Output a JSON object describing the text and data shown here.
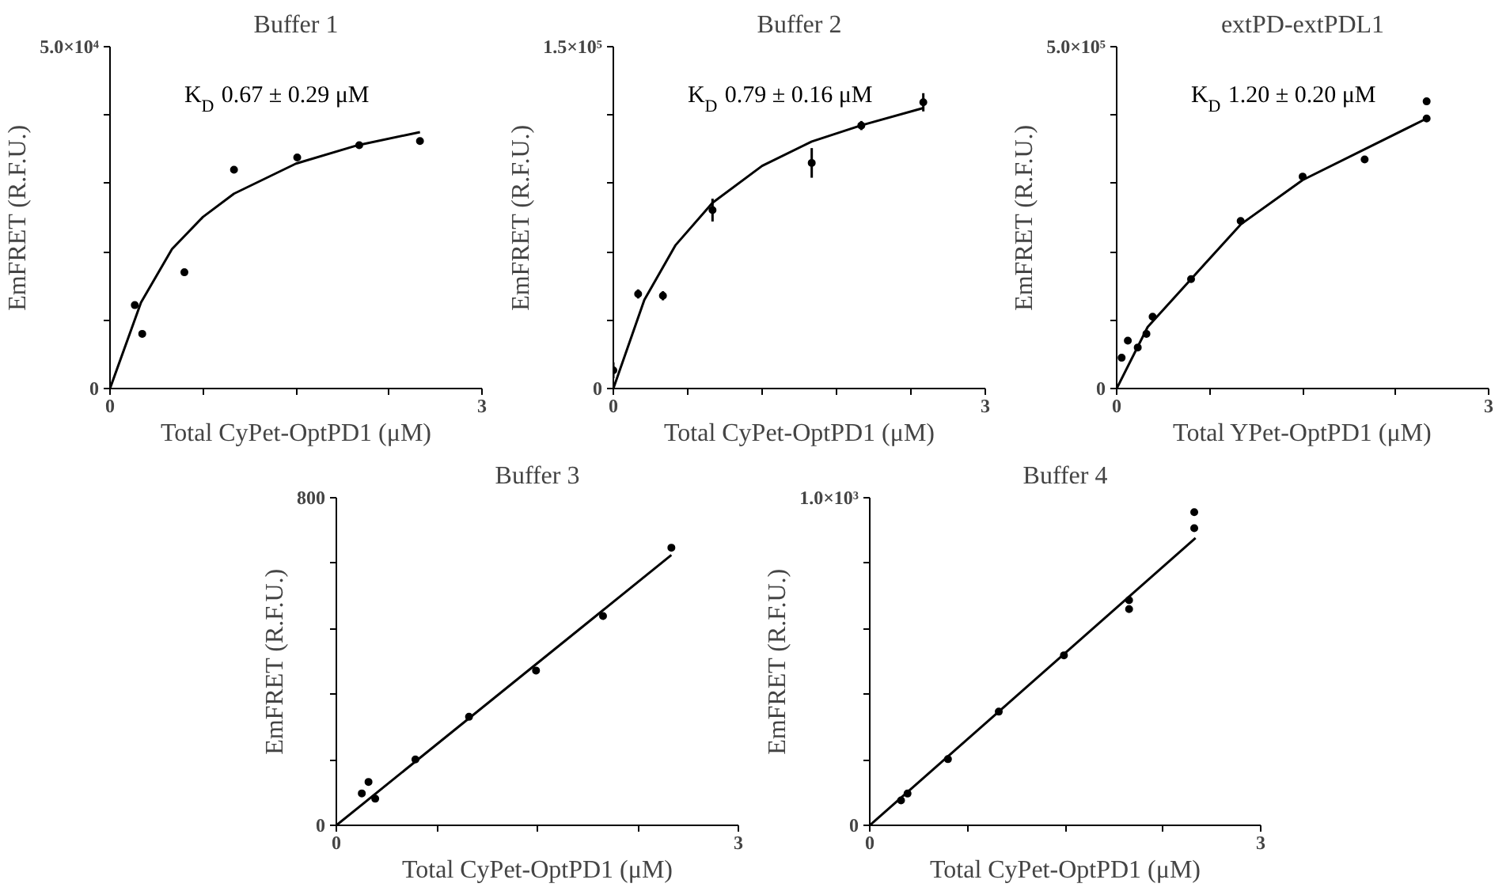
{
  "chart_data": [
    {
      "type": "scatter",
      "title": "Buffer 1",
      "xlabel": "Total CyPet-OptPD1 (μM)",
      "ylabel": "EmFRET (R.F.U.)",
      "annotations": [
        "K$_{D}$ 0.67 ± 0.29 μM"
      ],
      "xlim": [
        0,
        3
      ],
      "ylim": [
        0,
        50000
      ],
      "xticks": [
        0,
        {
          "value": 0.75,
          "label": null
        },
        {
          "value": 1.5,
          "label": null
        },
        {
          "value": 2.25,
          "label": null
        },
        3
      ],
      "yticks": [
        0,
        {
          "value": 10000,
          "label": null
        },
        {
          "value": 20000,
          "label": null
        },
        {
          "value": 30000,
          "label": null
        },
        {
          "value": 40000,
          "label": null
        },
        {
          "value": 50000,
          "label": "5.0×10⁴"
        }
      ],
      "grid": false,
      "series": [
        {
          "type": "scatter",
          "marker": "circle",
          "color": "#000000",
          "x": [
            0.2,
            0.26,
            0.6,
            1.0,
            1.51,
            2.01,
            2.5
          ],
          "values": [
            12200,
            8000,
            17000,
            32000,
            33800,
            35600,
            36200
          ]
        },
        {
          "type": "line",
          "color": "#000000",
          "x": [
            0,
            0.25,
            0.5,
            0.75,
            1.0,
            1.5,
            2.0,
            2.5
          ],
          "values": [
            0,
            12600,
            20400,
            25100,
            28500,
            32900,
            35600,
            37500
          ]
        }
      ]
    },
    {
      "type": "scatter",
      "title": "Buffer 2",
      "xlabel": "Total CyPet-OptPD1 (μM)",
      "ylabel": "EmFRET (R.F.U.)",
      "annotations": [
        "K$_{D}$ 0.79 ± 0.16 μM"
      ],
      "xlim": [
        0,
        3
      ],
      "ylim": [
        0,
        150000
      ],
      "xticks": [
        0,
        {
          "value": 0.6,
          "label": null
        },
        {
          "value": 1.2,
          "label": null
        },
        {
          "value": 1.8,
          "label": null
        },
        {
          "value": 2.4,
          "label": null
        },
        3
      ],
      "yticks": [
        0,
        {
          "value": 30000,
          "label": null
        },
        {
          "value": 60000,
          "label": null
        },
        {
          "value": 90000,
          "label": null
        },
        {
          "value": 120000,
          "label": null
        },
        {
          "value": 150000,
          "label": "1.5×10⁵"
        }
      ],
      "grid": false,
      "series": [
        {
          "type": "scatter",
          "marker": "circle",
          "color": "#000000",
          "x": [
            0,
            0.2,
            0.4,
            0.8,
            1.6,
            2.0,
            2.5
          ],
          "values": [
            8000,
            41500,
            40700,
            78300,
            99000,
            115400,
            125600
          ],
          "errors": [
            3500,
            2000,
            2000,
            5000,
            6500,
            2000,
            4000
          ]
        },
        {
          "type": "line",
          "color": "#000000",
          "x": [
            0,
            0.25,
            0.5,
            0.8,
            1.2,
            1.6,
            2.0,
            2.5
          ],
          "values": [
            0,
            38900,
            62800,
            81500,
            97700,
            108400,
            115500,
            123100
          ]
        }
      ]
    },
    {
      "type": "scatter",
      "title": "extPD-extPDL1",
      "xlabel": "Total YPet-OptPD1 (μM)",
      "ylabel": "EmFRET (R.F.U.)",
      "annotations": [
        "K$_{D}$ 1.20 ± 0.20 μM"
      ],
      "xlim": [
        0,
        3
      ],
      "ylim": [
        0,
        500000
      ],
      "xticks": [
        0,
        {
          "value": 0.75,
          "label": null
        },
        {
          "value": 1.5,
          "label": null
        },
        {
          "value": 2.25,
          "label": null
        },
        3
      ],
      "yticks": [
        0,
        {
          "value": 100000,
          "label": null
        },
        {
          "value": 200000,
          "label": null
        },
        {
          "value": 300000,
          "label": null
        },
        {
          "value": 400000,
          "label": null
        },
        {
          "value": 500000,
          "label": "5.0×10⁵"
        }
      ],
      "grid": false,
      "series": [
        {
          "type": "scatter",
          "marker": "circle",
          "color": "#000000",
          "x": [
            0.04,
            0.09,
            0.17,
            0.24,
            0.29,
            0.6,
            1.0,
            1.5,
            2.0,
            2.5,
            2.5
          ],
          "values": [
            45000,
            70000,
            60000,
            80000,
            105000,
            160000,
            245000,
            310000,
            335000,
            420000,
            395000
          ]
        },
        {
          "type": "line",
          "color": "#000000",
          "x": [
            0,
            0.25,
            0.6,
            1.0,
            1.5,
            2.0,
            2.5
          ],
          "values": [
            0,
            90000,
            160000,
            240000,
            305000,
            350000,
            395000
          ]
        }
      ]
    },
    {
      "type": "scatter",
      "title": "Buffer 3",
      "xlabel": "Total CyPet-OptPD1 (μM)",
      "ylabel": "EmFRET (R.F.U.)",
      "xlim": [
        0,
        3
      ],
      "ylim": [
        0,
        800
      ],
      "xticks": [
        0,
        {
          "value": 0.75,
          "label": null
        },
        {
          "value": 1.5,
          "label": null
        },
        {
          "value": 2.25,
          "label": null
        },
        3
      ],
      "yticks": [
        0,
        {
          "value": 160,
          "label": null
        },
        {
          "value": 320,
          "label": null
        },
        {
          "value": 480,
          "label": null
        },
        {
          "value": 640,
          "label": null
        },
        800
      ],
      "grid": false,
      "series": [
        {
          "type": "scatter",
          "marker": "circle",
          "color": "#000000",
          "x": [
            0.19,
            0.24,
            0.29,
            0.59,
            0.99,
            1.49,
            1.99,
            2.5
          ],
          "values": [
            78,
            106,
            65,
            161,
            265,
            378,
            511,
            678
          ]
        },
        {
          "type": "line",
          "color": "#000000",
          "x": [
            0,
            2.5
          ],
          "values": [
            0,
            660
          ]
        }
      ]
    },
    {
      "type": "scatter",
      "title": "Buffer 4",
      "xlabel": "Total CyPet-OptPD1 (μM)",
      "ylabel": "EmFRET (R.F.U.)",
      "xlim": [
        0,
        3
      ],
      "ylim": [
        0,
        1000
      ],
      "xticks": [
        0,
        {
          "value": 0.75,
          "label": null
        },
        {
          "value": 1.5,
          "label": null
        },
        {
          "value": 2.25,
          "label": null
        },
        3
      ],
      "yticks": [
        0,
        {
          "value": 200,
          "label": null
        },
        {
          "value": 400,
          "label": null
        },
        {
          "value": 600,
          "label": null
        },
        {
          "value": 800,
          "label": null
        },
        {
          "value": 1000,
          "label": "1.0×10³"
        }
      ],
      "grid": false,
      "series": [
        {
          "type": "scatter",
          "marker": "circle",
          "color": "#000000",
          "x": [
            0.24,
            0.29,
            0.6,
            0.99,
            1.49,
            1.99,
            1.99,
            2.49,
            2.49
          ],
          "values": [
            76,
            97,
            202,
            347,
            519,
            687,
            660,
            956,
            907
          ]
        },
        {
          "type": "line",
          "color": "#000000",
          "x": [
            0,
            2.5
          ],
          "values": [
            0,
            877
          ]
        }
      ]
    }
  ]
}
